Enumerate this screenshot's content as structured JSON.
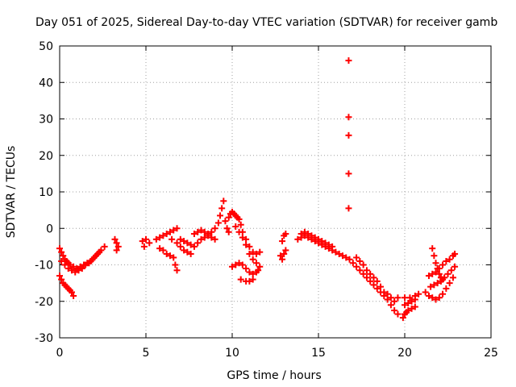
{
  "chart_data": {
    "type": "scatter",
    "title": "Day 051 of 2025, Sidereal Day-to-day VTEC variation (SDTVAR) for receiver gamb",
    "xlabel": "GPS time / hours",
    "ylabel": "SDTVAR / TECUs",
    "xlim": [
      0,
      25
    ],
    "ylim": [
      -30,
      50
    ],
    "xticks": [
      0,
      5,
      10,
      15,
      20,
      25
    ],
    "yticks": [
      -30,
      -20,
      -10,
      0,
      10,
      20,
      30,
      40,
      50
    ],
    "grid": true,
    "marker": "+",
    "color": "#ff0000",
    "series": [
      {
        "name": "SDTVAR",
        "points": [
          [
            0.0,
            -5.5
          ],
          [
            0.1,
            -6.5
          ],
          [
            0.2,
            -7.5
          ],
          [
            0.3,
            -8.5
          ],
          [
            0.4,
            -9.0
          ],
          [
            0.5,
            -9.5
          ],
          [
            0.6,
            -10.0
          ],
          [
            0.8,
            -10.5
          ],
          [
            1.0,
            -11.0
          ],
          [
            1.2,
            -10.5
          ],
          [
            1.4,
            -10.0
          ],
          [
            1.6,
            -9.5
          ],
          [
            1.8,
            -9.0
          ],
          [
            2.0,
            -8.0
          ],
          [
            2.2,
            -7.0
          ],
          [
            2.4,
            -6.0
          ],
          [
            2.6,
            -5.0
          ],
          [
            0.1,
            -9.0
          ],
          [
            0.3,
            -10.0
          ],
          [
            0.5,
            -11.0
          ],
          [
            0.7,
            -11.5
          ],
          [
            0.9,
            -12.0
          ],
          [
            1.1,
            -11.5
          ],
          [
            1.3,
            -11.0
          ],
          [
            1.5,
            -10.0
          ],
          [
            1.7,
            -9.5
          ],
          [
            1.9,
            -8.5
          ],
          [
            2.1,
            -7.5
          ],
          [
            2.3,
            -6.5
          ],
          [
            0.0,
            -13.0
          ],
          [
            0.1,
            -14.0
          ],
          [
            0.2,
            -15.0
          ],
          [
            0.3,
            -15.5
          ],
          [
            0.4,
            -16.0
          ],
          [
            0.5,
            -16.5
          ],
          [
            0.6,
            -17.0
          ],
          [
            0.7,
            -17.5
          ],
          [
            0.8,
            -18.5
          ],
          [
            3.2,
            -3.0
          ],
          [
            3.3,
            -4.0
          ],
          [
            3.4,
            -5.0
          ],
          [
            3.3,
            -6.0
          ],
          [
            4.8,
            -3.5
          ],
          [
            5.0,
            -3.0
          ],
          [
            5.2,
            -4.0
          ],
          [
            4.9,
            -5.0
          ],
          [
            5.6,
            -3.0
          ],
          [
            5.8,
            -2.5
          ],
          [
            6.0,
            -2.0
          ],
          [
            6.2,
            -1.5
          ],
          [
            6.4,
            -1.0
          ],
          [
            6.6,
            -0.5
          ],
          [
            6.8,
            0.0
          ],
          [
            6.5,
            -3.0
          ],
          [
            6.8,
            -4.0
          ],
          [
            7.0,
            -5.0
          ],
          [
            7.2,
            -6.0
          ],
          [
            7.4,
            -6.5
          ],
          [
            7.6,
            -7.0
          ],
          [
            6.6,
            -8.0
          ],
          [
            6.7,
            -10.0
          ],
          [
            6.8,
            -11.5
          ],
          [
            5.8,
            -5.5
          ],
          [
            6.0,
            -6.0
          ],
          [
            6.2,
            -7.0
          ],
          [
            6.4,
            -7.5
          ],
          [
            7.0,
            -3.0
          ],
          [
            7.2,
            -3.5
          ],
          [
            7.4,
            -4.0
          ],
          [
            7.6,
            -4.5
          ],
          [
            7.8,
            -5.0
          ],
          [
            8.0,
            -4.0
          ],
          [
            8.2,
            -3.0
          ],
          [
            8.4,
            -2.5
          ],
          [
            8.6,
            -2.0
          ],
          [
            8.8,
            -2.5
          ],
          [
            9.0,
            -3.0
          ],
          [
            7.8,
            -1.5
          ],
          [
            8.0,
            -1.0
          ],
          [
            8.2,
            -0.5
          ],
          [
            8.4,
            -1.0
          ],
          [
            8.6,
            -1.5
          ],
          [
            8.8,
            -1.0
          ],
          [
            9.0,
            0.0
          ],
          [
            9.2,
            1.5
          ],
          [
            9.3,
            3.5
          ],
          [
            9.4,
            5.5
          ],
          [
            9.5,
            7.5
          ],
          [
            9.6,
            2.0
          ],
          [
            9.7,
            0.0
          ],
          [
            9.8,
            -1.0
          ],
          [
            9.8,
            3.0
          ],
          [
            9.9,
            4.0
          ],
          [
            10.0,
            4.5
          ],
          [
            10.1,
            4.0
          ],
          [
            10.2,
            3.5
          ],
          [
            10.3,
            3.0
          ],
          [
            10.4,
            2.5
          ],
          [
            10.5,
            1.0
          ],
          [
            10.6,
            -1.0
          ],
          [
            10.8,
            -3.0
          ],
          [
            11.0,
            -5.0
          ],
          [
            11.2,
            -6.5
          ],
          [
            11.4,
            -7.0
          ],
          [
            11.6,
            -6.5
          ],
          [
            10.0,
            -10.5
          ],
          [
            10.2,
            -10.0
          ],
          [
            10.4,
            -9.5
          ],
          [
            10.6,
            -10.0
          ],
          [
            10.8,
            -11.0
          ],
          [
            11.0,
            -12.0
          ],
          [
            11.2,
            -12.5
          ],
          [
            11.4,
            -12.0
          ],
          [
            11.5,
            -11.5
          ],
          [
            10.5,
            -14.0
          ],
          [
            10.8,
            -14.5
          ],
          [
            11.0,
            -14.5
          ],
          [
            11.2,
            -14.0
          ],
          [
            10.2,
            0.5
          ],
          [
            10.4,
            -1.0
          ],
          [
            10.6,
            -2.5
          ],
          [
            10.8,
            -4.5
          ],
          [
            11.0,
            -7.0
          ],
          [
            11.2,
            -8.5
          ],
          [
            11.4,
            -9.5
          ],
          [
            11.6,
            -10.5
          ],
          [
            12.8,
            -7.5
          ],
          [
            12.9,
            -8.5
          ],
          [
            13.0,
            -7.0
          ],
          [
            13.1,
            -6.0
          ],
          [
            12.9,
            -3.5
          ],
          [
            13.0,
            -2.0
          ],
          [
            13.1,
            -1.5
          ],
          [
            13.8,
            -3.0
          ],
          [
            14.0,
            -2.5
          ],
          [
            14.2,
            -2.0
          ],
          [
            14.4,
            -2.5
          ],
          [
            14.6,
            -3.0
          ],
          [
            14.8,
            -3.5
          ],
          [
            15.0,
            -4.0
          ],
          [
            15.2,
            -4.5
          ],
          [
            15.4,
            -5.0
          ],
          [
            15.6,
            -5.5
          ],
          [
            15.8,
            -6.0
          ],
          [
            16.0,
            -6.5
          ],
          [
            16.2,
            -7.0
          ],
          [
            16.4,
            -7.5
          ],
          [
            16.6,
            -8.0
          ],
          [
            14.0,
            -1.5
          ],
          [
            14.2,
            -1.0
          ],
          [
            14.4,
            -1.5
          ],
          [
            14.6,
            -2.0
          ],
          [
            14.8,
            -2.5
          ],
          [
            15.0,
            -3.0
          ],
          [
            15.2,
            -3.5
          ],
          [
            15.4,
            -4.0
          ],
          [
            15.6,
            -4.5
          ],
          [
            15.8,
            -5.0
          ],
          [
            16.75,
            46.0
          ],
          [
            16.75,
            30.5
          ],
          [
            16.75,
            25.5
          ],
          [
            16.75,
            15.0
          ],
          [
            16.75,
            5.5
          ],
          [
            16.8,
            -8.5
          ],
          [
            17.0,
            -9.5
          ],
          [
            17.2,
            -10.5
          ],
          [
            17.4,
            -11.5
          ],
          [
            17.6,
            -12.5
          ],
          [
            17.8,
            -13.5
          ],
          [
            18.0,
            -14.5
          ],
          [
            18.2,
            -15.5
          ],
          [
            18.4,
            -16.5
          ],
          [
            18.6,
            -17.5
          ],
          [
            18.8,
            -18.5
          ],
          [
            19.0,
            -19.5
          ],
          [
            19.2,
            -21.0
          ],
          [
            19.4,
            -22.5
          ],
          [
            19.6,
            -23.5
          ],
          [
            17.2,
            -8.0
          ],
          [
            17.4,
            -9.0
          ],
          [
            17.6,
            -10.0
          ],
          [
            17.8,
            -11.5
          ],
          [
            18.0,
            -12.5
          ],
          [
            18.2,
            -13.5
          ],
          [
            18.4,
            -14.5
          ],
          [
            18.6,
            -16.0
          ],
          [
            18.8,
            -17.5
          ],
          [
            19.0,
            -18.0
          ],
          [
            19.2,
            -19.0
          ],
          [
            19.4,
            -20.0
          ],
          [
            19.6,
            -19.0
          ],
          [
            19.9,
            -24.5
          ],
          [
            20.0,
            -23.5
          ],
          [
            20.1,
            -23.0
          ],
          [
            20.2,
            -22.5
          ],
          [
            20.4,
            -22.0
          ],
          [
            20.6,
            -21.5
          ],
          [
            20.0,
            -21.0
          ],
          [
            20.2,
            -20.5
          ],
          [
            20.4,
            -20.0
          ],
          [
            20.6,
            -19.5
          ],
          [
            20.0,
            -19.0
          ],
          [
            20.3,
            -19.0
          ],
          [
            20.6,
            -18.5
          ],
          [
            20.8,
            -18.0
          ],
          [
            21.2,
            -17.5
          ],
          [
            21.4,
            -18.5
          ],
          [
            21.6,
            -19.0
          ],
          [
            21.8,
            -19.5
          ],
          [
            22.0,
            -19.0
          ],
          [
            22.2,
            -18.0
          ],
          [
            22.4,
            -16.5
          ],
          [
            22.6,
            -15.0
          ],
          [
            22.8,
            -13.5
          ],
          [
            21.6,
            -5.5
          ],
          [
            21.7,
            -7.5
          ],
          [
            21.8,
            -9.5
          ],
          [
            21.9,
            -11.0
          ],
          [
            22.0,
            -12.5
          ],
          [
            22.1,
            -13.5
          ],
          [
            22.2,
            -14.0
          ],
          [
            21.5,
            -16.0
          ],
          [
            21.7,
            -15.5
          ],
          [
            21.9,
            -15.0
          ],
          [
            22.1,
            -14.5
          ],
          [
            22.3,
            -13.5
          ],
          [
            22.5,
            -12.5
          ],
          [
            22.7,
            -11.5
          ],
          [
            22.9,
            -10.5
          ],
          [
            21.4,
            -13.0
          ],
          [
            21.6,
            -12.5
          ],
          [
            21.8,
            -12.0
          ],
          [
            22.0,
            -11.0
          ],
          [
            22.2,
            -10.0
          ],
          [
            22.4,
            -9.0
          ],
          [
            22.6,
            -8.5
          ],
          [
            22.8,
            -7.5
          ],
          [
            22.9,
            -7.0
          ]
        ]
      }
    ]
  }
}
